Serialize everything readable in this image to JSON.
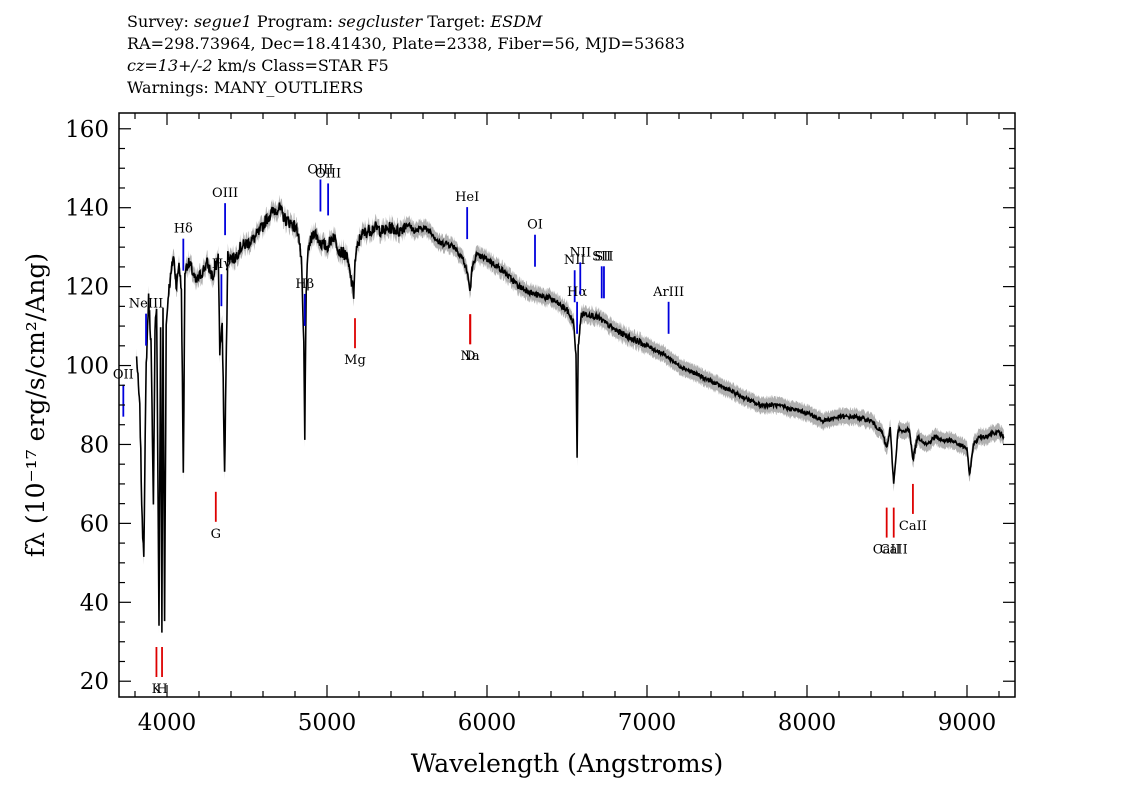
{
  "header": {
    "survey_label": "Survey:",
    "survey_value": "segue1",
    "program_label": "Program:",
    "program_value": "segcluster",
    "target_label": "Target:",
    "target_value": "ESDM",
    "line2": "RA=298.73964, Dec=18.41430, Plate=2338, Fiber=56, MJD=53683",
    "cz_value": "cz=13+/-2",
    "cz_rest": " km/s Class=STAR F5",
    "warnings": "Warnings: MANY_OUTLIERS"
  },
  "chart_data": {
    "type": "line",
    "xlabel": "Wavelength (Angstroms)",
    "ylabel": "fλ (10⁻¹⁷ erg/s/cm²/Ang)",
    "xlim": [
      3700,
      9300
    ],
    "ylim": [
      16,
      164
    ],
    "x_ticks": [
      4000,
      5000,
      6000,
      7000,
      8000,
      9000
    ],
    "y_ticks": [
      20,
      40,
      60,
      80,
      100,
      120,
      140,
      160
    ],
    "colors": {
      "spectrum": "#000000",
      "error_band": "#b0b0b0",
      "emission": "#0000dd",
      "absorption": "#dd0000"
    },
    "series": [
      {
        "x": [
          3810,
          3830,
          3845,
          3855,
          3870,
          3885,
          3900,
          3915,
          3925,
          3935,
          3950,
          3960,
          3968,
          3975,
          3985,
          3995,
          4010,
          4025,
          4040,
          4060,
          4075,
          4090,
          4102,
          4112,
          4130,
          4150,
          4180,
          4210,
          4250,
          4290,
          4320,
          4330,
          4345,
          4360,
          4380,
          4420,
          4460,
          4500,
          4540,
          4580,
          4620,
          4660,
          4700,
          4740,
          4780,
          4820,
          4840,
          4855,
          4861,
          4870,
          4885,
          4920,
          4960,
          5000,
          5040,
          5080,
          5120,
          5150,
          5167,
          5175,
          5185,
          5210,
          5250,
          5300,
          5350,
          5400,
          5450,
          5500,
          5550,
          5600,
          5650,
          5700,
          5750,
          5800,
          5850,
          5880,
          5890,
          5896,
          5905,
          5930,
          6000,
          6100,
          6200,
          6300,
          6400,
          6500,
          6540,
          6556,
          6563,
          6570,
          6590,
          6640,
          6700,
          6800,
          6900,
          7000,
          7100,
          7200,
          7300,
          7400,
          7500,
          7600,
          7700,
          7800,
          7900,
          8000,
          8100,
          8200,
          8300,
          8400,
          8470,
          8498,
          8520,
          8542,
          8570,
          8600,
          8640,
          8662,
          8690,
          8750,
          8800,
          8850,
          8900,
          8950,
          9000,
          9015,
          9040,
          9080,
          9120,
          9160,
          9200,
          9230
        ],
        "y": [
          102,
          89,
          60,
          53,
          100,
          117,
          106,
          64,
          110,
          115,
          35,
          110,
          32,
          114,
          35,
          110,
          119,
          123,
          128,
          120,
          126,
          119,
          73,
          124,
          126,
          125,
          121,
          123,
          126,
          122,
          128,
          104,
          110,
          74,
          128,
          127,
          130,
          131,
          132,
          134,
          137,
          139,
          140,
          137,
          136,
          134,
          126,
          105,
          81,
          120,
          130,
          134,
          131,
          130,
          133,
          129,
          128,
          122,
          118,
          126,
          129,
          133,
          134,
          135,
          134,
          135,
          134,
          136,
          134,
          135,
          134,
          131,
          131,
          130,
          127,
          123,
          120,
          119,
          124,
          128,
          127,
          124,
          120,
          118,
          117,
          114,
          111,
          103,
          76,
          105,
          113,
          113,
          112,
          109,
          107,
          105,
          103,
          100,
          98,
          96,
          94,
          92,
          90,
          90,
          89,
          88,
          86,
          87,
          87,
          86,
          83,
          79,
          84,
          70,
          84,
          83,
          84,
          76,
          82,
          80,
          82,
          81,
          81,
          80,
          79,
          72,
          80,
          82,
          82,
          83,
          83,
          82
        ],
        "error": 2
      }
    ],
    "emission_lines": [
      {
        "label": "OII",
        "x": 3727
      },
      {
        "label": "NeIII",
        "x": 3869
      },
      {
        "label": "Hδ",
        "x": 4102
      },
      {
        "label": "Hγ",
        "x": 4340
      },
      {
        "label": "OIII",
        "x": 4363
      },
      {
        "label": "Hβ",
        "x": 4861
      },
      {
        "label": "OIII",
        "x": 4959
      },
      {
        "label": "OIII",
        "x": 5007
      },
      {
        "label": "HeI",
        "x": 5876
      },
      {
        "label": "OI",
        "x": 6300
      },
      {
        "label": "NII",
        "x": 6548
      },
      {
        "label": "Hα",
        "x": 6563
      },
      {
        "label": "NII",
        "x": 6583
      },
      {
        "label": "SII",
        "x": 6717
      },
      {
        "label": "SII",
        "x": 6731
      },
      {
        "label": "ArIII",
        "x": 7135
      }
    ],
    "absorption_lines": [
      {
        "label": "K",
        "x": 3934
      },
      {
        "label": "H",
        "x": 3969
      },
      {
        "label": "G",
        "x": 4305
      },
      {
        "label": "Mg",
        "x": 5175
      },
      {
        "label": "Na",
        "x": 5894
      },
      {
        "label": "D",
        "x": 5896
      },
      {
        "label": "CaII",
        "x": 8498
      },
      {
        "label": "CaII",
        "x": 8542
      },
      {
        "label": "CaII",
        "x": 8662
      }
    ]
  }
}
